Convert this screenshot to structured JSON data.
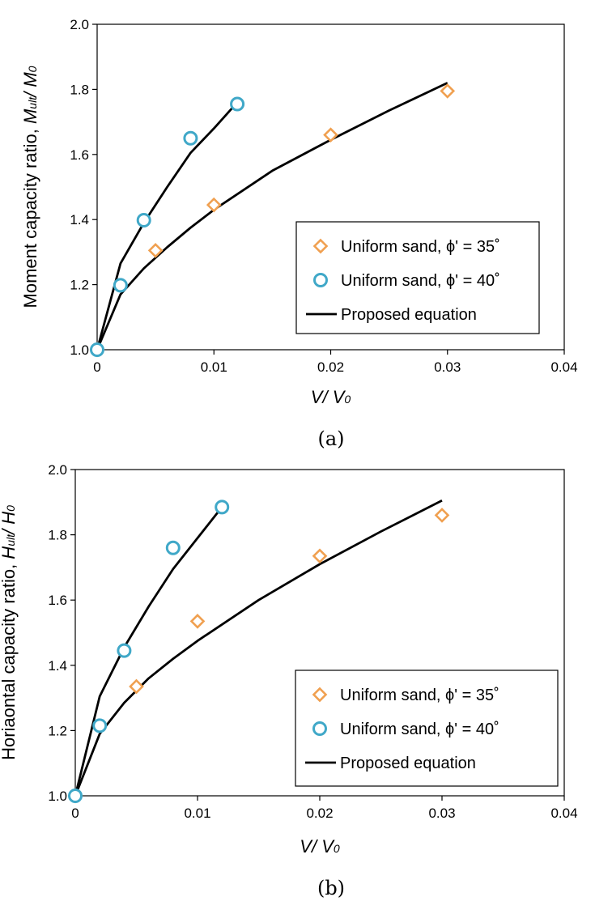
{
  "colors": {
    "phi35": "#f0a050",
    "phi40": "#40a8c8",
    "equation": "#000000"
  },
  "chart_data": [
    {
      "type": "scatter",
      "caption": "(a)",
      "ylabel": {
        "text": "Moment capacity ratio, ",
        "var1": "M",
        "sub1": "ult",
        "sep": "/ ",
        "var2": "M",
        "sub2": "0"
      },
      "xlabel": {
        "var1": "V",
        "sep": "/ ",
        "var2": "V",
        "sub2": "0"
      },
      "xlim": [
        0,
        0.04
      ],
      "ylim": [
        1.0,
        2.0
      ],
      "xticks": [
        0,
        0.01,
        0.02,
        0.03,
        0.04
      ],
      "xtick_labels": [
        "0",
        "0.01",
        "0.02",
        "0.03",
        "0.04"
      ],
      "yticks": [
        1.0,
        1.2,
        1.4,
        1.6,
        1.8,
        2.0
      ],
      "ytick_labels": [
        "1.0",
        "1.2",
        "1.4",
        "1.6",
        "1.8",
        "2.0"
      ],
      "legend_position": "bottom-right",
      "series": [
        {
          "name": "Uniform sand, ϕ' = 35˚",
          "marker": "diamond",
          "color": "#f0a050",
          "x": [
            0,
            0.005,
            0.01,
            0.02,
            0.03
          ],
          "y": [
            1.0,
            1.305,
            1.445,
            1.66,
            1.795
          ]
        },
        {
          "name": "Uniform sand, ϕ' = 40˚",
          "marker": "circle",
          "color": "#40a8c8",
          "x": [
            0,
            0.002,
            0.004,
            0.008,
            0.012
          ],
          "y": [
            1.0,
            1.198,
            1.398,
            1.65,
            1.755
          ]
        },
        {
          "name": "Proposed equation",
          "marker": "line",
          "color": "#000000",
          "lines": [
            {
              "x": [
                0,
                0.002,
                0.004,
                0.006,
                0.008,
                0.01,
                0.012
              ],
              "y": [
                1.0,
                1.265,
                1.39,
                1.5,
                1.605,
                1.68,
                1.76
              ]
            },
            {
              "x": [
                0,
                0.002,
                0.004,
                0.006,
                0.008,
                0.01,
                0.015,
                0.02,
                0.025,
                0.03
              ],
              "y": [
                1.0,
                1.17,
                1.25,
                1.315,
                1.375,
                1.43,
                1.55,
                1.645,
                1.735,
                1.82
              ]
            }
          ]
        }
      ]
    },
    {
      "type": "scatter",
      "caption": "(b)",
      "ylabel": {
        "text": "Horiaontal capacity ratio, ",
        "var1": "H",
        "sub1": "ult",
        "sep": "/ ",
        "var2": "H",
        "sub2": "0"
      },
      "xlabel": {
        "var1": "V",
        "sep": "/ ",
        "var2": "V",
        "sub2": "0"
      },
      "xlim": [
        0,
        0.04
      ],
      "ylim": [
        1.0,
        2.0
      ],
      "xticks": [
        0,
        0.01,
        0.02,
        0.03,
        0.04
      ],
      "xtick_labels": [
        "0",
        "0.01",
        "0.02",
        "0.03",
        "0.04"
      ],
      "yticks": [
        1.0,
        1.2,
        1.4,
        1.6,
        1.8,
        2.0
      ],
      "ytick_labels": [
        "1.0",
        "1.2",
        "1.4",
        "1.6",
        "1.8",
        "2.0"
      ],
      "legend_position": "bottom-right",
      "series": [
        {
          "name": "Uniform sand, ϕ' = 35˚",
          "marker": "diamond",
          "color": "#f0a050",
          "x": [
            0,
            0.005,
            0.01,
            0.02,
            0.03
          ],
          "y": [
            1.0,
            1.335,
            1.535,
            1.735,
            1.86
          ]
        },
        {
          "name": "Uniform sand, ϕ' = 40˚",
          "marker": "circle",
          "color": "#40a8c8",
          "x": [
            0,
            0.002,
            0.004,
            0.008,
            0.012
          ],
          "y": [
            1.0,
            1.215,
            1.445,
            1.76,
            1.885
          ]
        },
        {
          "name": "Proposed equation",
          "marker": "line",
          "color": "#000000",
          "lines": [
            {
              "x": [
                0,
                0.002,
                0.004,
                0.006,
                0.008,
                0.01,
                0.012
              ],
              "y": [
                1.0,
                1.305,
                1.455,
                1.58,
                1.695,
                1.79,
                1.885
              ]
            },
            {
              "x": [
                0,
                0.002,
                0.004,
                0.006,
                0.008,
                0.01,
                0.015,
                0.02,
                0.025,
                0.03
              ],
              "y": [
                1.0,
                1.19,
                1.285,
                1.36,
                1.42,
                1.475,
                1.6,
                1.71,
                1.81,
                1.905
              ]
            }
          ]
        }
      ]
    }
  ]
}
